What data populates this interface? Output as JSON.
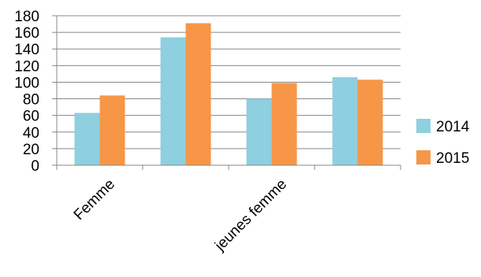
{
  "chart_data": {
    "type": "bar",
    "categories": [
      "Femme",
      "",
      "jeunes femme",
      ""
    ],
    "series": [
      {
        "name": "2014",
        "values": [
          63,
          154,
          80,
          106
        ],
        "color": "#8ecfe0"
      },
      {
        "name": "2015",
        "values": [
          84,
          171,
          99,
          103
        ],
        "color": "#f79646"
      }
    ],
    "y_ticks": [
      "0",
      "20",
      "40",
      "60",
      "80",
      "100",
      "120",
      "140",
      "160",
      "180"
    ],
    "ylim": [
      0,
      180
    ],
    "grid": true,
    "legend_position": "right",
    "title": "",
    "xlabel": "",
    "ylabel": ""
  }
}
